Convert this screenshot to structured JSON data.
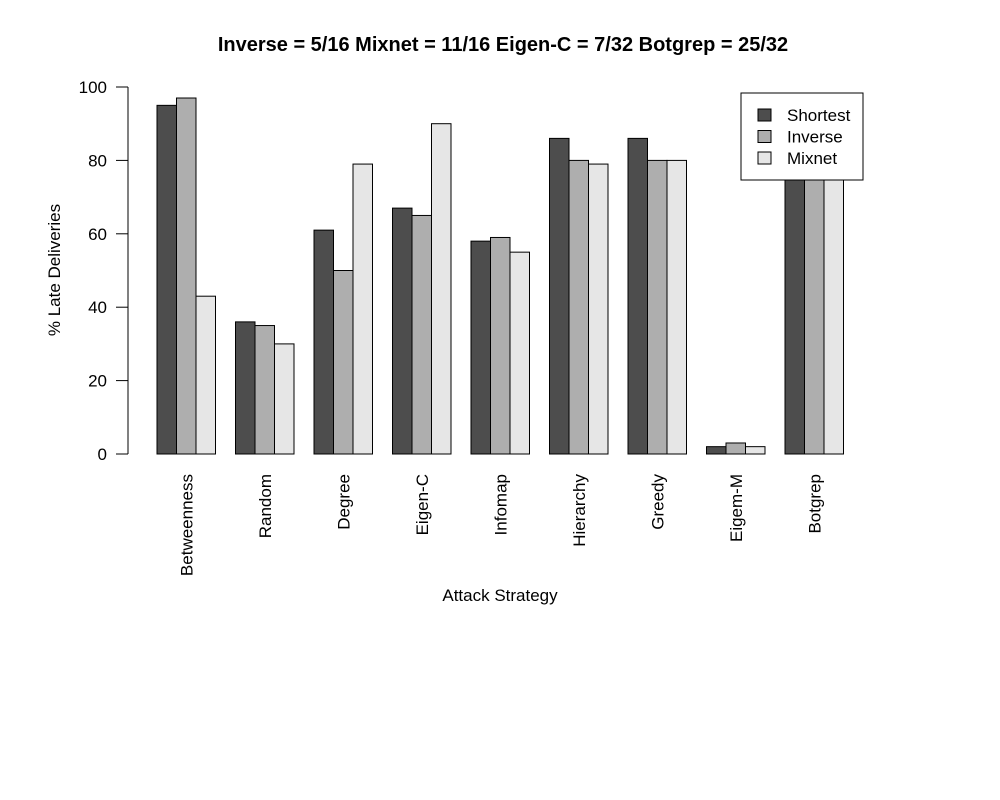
{
  "chart_data": {
    "type": "bar",
    "title": "Inverse = 5/16 Mixnet = 11/16 Eigen-C = 7/32 Botgrep = 25/32",
    "xlabel": "Attack Strategy",
    "ylabel": "% Late Deliveries",
    "categories": [
      "Betweenness",
      "Random",
      "Degree",
      "Eigen-C",
      "Infomap",
      "Hierarchy",
      "Greedy",
      "Eigem-M",
      "Botgrep"
    ],
    "ylim": [
      0,
      100
    ],
    "yticks": [
      "0",
      "20",
      "40",
      "60",
      "80",
      "100"
    ],
    "grid": false,
    "legend_position": "top-right",
    "series": [
      {
        "name": "Shortest",
        "color": "#4d4d4d",
        "values": [
          95,
          36,
          61,
          67,
          58,
          86,
          86,
          2,
          78
        ]
      },
      {
        "name": "Inverse",
        "color": "#aeaeae",
        "values": [
          97,
          35,
          50,
          65,
          59,
          80,
          80,
          3,
          78
        ]
      },
      {
        "name": "Mixnet",
        "color": "#e6e6e6",
        "values": [
          43,
          30,
          79,
          90,
          55,
          79,
          80,
          2,
          78
        ]
      }
    ]
  }
}
